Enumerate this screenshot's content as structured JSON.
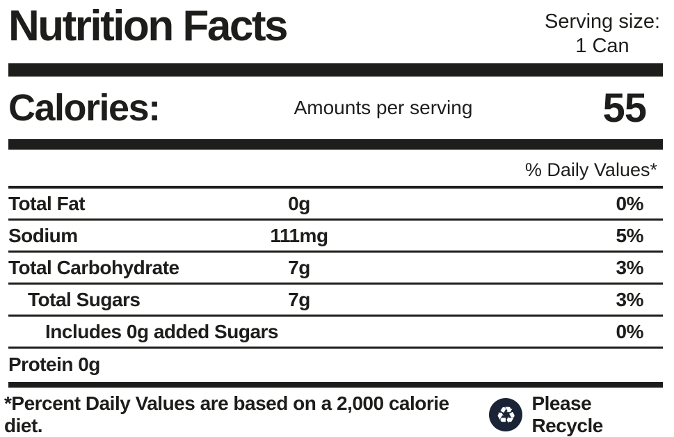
{
  "label": {
    "title": "Nutrition Facts",
    "serving": {
      "label": "Serving size:",
      "value": "1 Can"
    },
    "calories": {
      "label": "Calories:",
      "subtitle": "Amounts per serving",
      "value": "55"
    },
    "daily_values_header": "% Daily Values*",
    "rows": [
      {
        "name": "Total Fat",
        "amount": "0g",
        "dv": "0%",
        "indent": 0
      },
      {
        "name": "Sodium",
        "amount": "111mg",
        "dv": "5%",
        "indent": 0
      },
      {
        "name": "Total Carbohydrate",
        "amount": "7g",
        "dv": "3%",
        "indent": 0
      },
      {
        "name": "Total Sugars",
        "amount": "7g",
        "dv": "3%",
        "indent": 1
      },
      {
        "name": "Includes 0g added Sugars",
        "amount": "",
        "dv": "0%",
        "indent": 2
      },
      {
        "name": "Protein 0g",
        "amount": "",
        "dv": "",
        "indent": 0
      }
    ],
    "footnote": "*Percent Daily Values are based on a 2,000 calorie diet.",
    "recycle_text": "Please Recycle",
    "icons": {
      "recycle_icon_glyph": "♻"
    },
    "colors": {
      "ink": "#1d1d1b",
      "recycle_badge": "#1b2436"
    }
  }
}
